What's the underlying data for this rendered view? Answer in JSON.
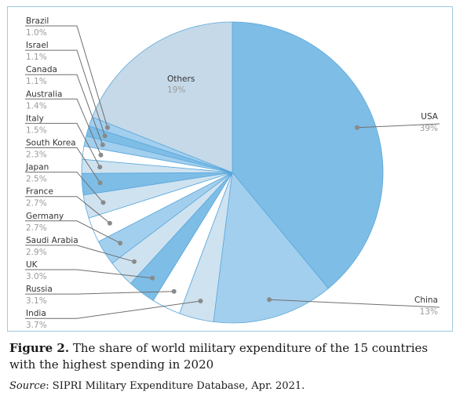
{
  "chart_data": {
    "type": "pie",
    "title": "",
    "unit": "%",
    "slices": [
      {
        "name": "USA",
        "value": 39,
        "label": "39%",
        "color": "#7ebde6"
      },
      {
        "name": "China",
        "value": 13,
        "label": "13%",
        "color": "#a3cfee"
      },
      {
        "name": "India",
        "value": 3.7,
        "label": "3.7%",
        "color": "#cfe2f0"
      },
      {
        "name": "Russia",
        "value": 3.1,
        "label": "3.1%",
        "color": "#ffffff"
      },
      {
        "name": "UK",
        "value": 3.0,
        "label": "3.0%",
        "color": "#7ebde6"
      },
      {
        "name": "Saudi Arabia",
        "value": 2.9,
        "label": "2.9%",
        "color": "#cfe2f0"
      },
      {
        "name": "Germany",
        "value": 2.7,
        "label": "2.7%",
        "color": "#a3cfee"
      },
      {
        "name": "France",
        "value": 2.7,
        "label": "2.7%",
        "color": "#ffffff"
      },
      {
        "name": "Japan",
        "value": 2.5,
        "label": "2.5%",
        "color": "#cfe2f0"
      },
      {
        "name": "South Korea",
        "value": 2.3,
        "label": "2.3%",
        "color": "#7ebde6"
      },
      {
        "name": "Italy",
        "value": 1.5,
        "label": "1.5%",
        "color": "#cfe2f0"
      },
      {
        "name": "Australia",
        "value": 1.4,
        "label": "1.4%",
        "color": "#ffffff"
      },
      {
        "name": "Canada",
        "value": 1.1,
        "label": "1.1%",
        "color": "#a3cfee"
      },
      {
        "name": "Israel",
        "value": 1.1,
        "label": "1.1%",
        "color": "#7ebde6"
      },
      {
        "name": "Brazil",
        "value": 1.0,
        "label": "1.0%",
        "color": "#a3cfee"
      },
      {
        "name": "Others",
        "value": 19,
        "label": "19%",
        "color": "#c5d9e8"
      }
    ]
  },
  "caption": {
    "figure_label": "Figure 2.",
    "text": " The share of world military expenditure of the 15 countries with the highest spending in 2020"
  },
  "source": {
    "label": "Source",
    "text": ": SIPRI Military Expenditure Database, Apr. 2021."
  }
}
